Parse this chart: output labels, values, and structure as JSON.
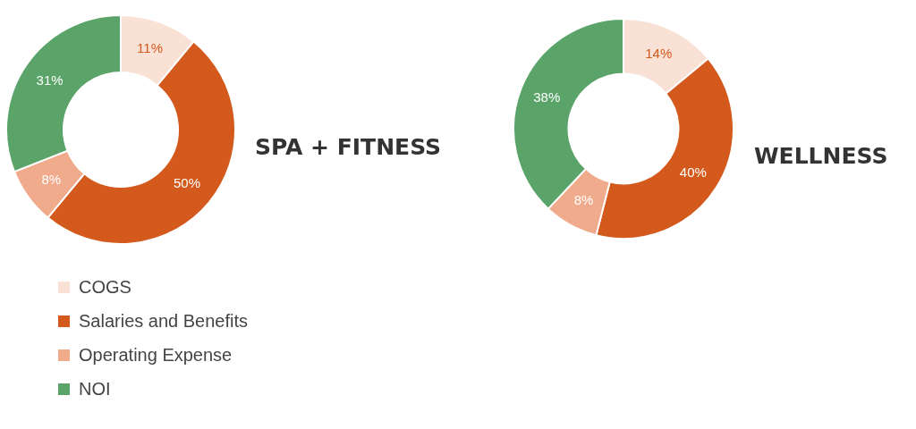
{
  "chart_data": [
    {
      "type": "donut",
      "title": "SPA + FITNESS",
      "categories": [
        "COGS",
        "Salaries and Benefits",
        "Operating Expense",
        "NOI"
      ],
      "values": [
        11,
        50,
        8,
        31
      ],
      "colors": [
        "#f9e1d5",
        "#d35a1c",
        "#f0aa8c",
        "#5ba469"
      ],
      "value_labels": [
        "11%",
        "50%",
        "8%",
        "31%"
      ],
      "legend": "bottom"
    },
    {
      "type": "donut",
      "title": "WELLNESS",
      "categories": [
        null,
        null,
        null,
        null
      ],
      "values": [
        14,
        40,
        8,
        38
      ],
      "colors": [
        "#f9e1d5",
        "#d35a1c",
        "#f0aa8c",
        "#5ba469"
      ],
      "value_labels": [
        "14%",
        "40%",
        "8%",
        "38%"
      ],
      "legend": false
    }
  ]
}
